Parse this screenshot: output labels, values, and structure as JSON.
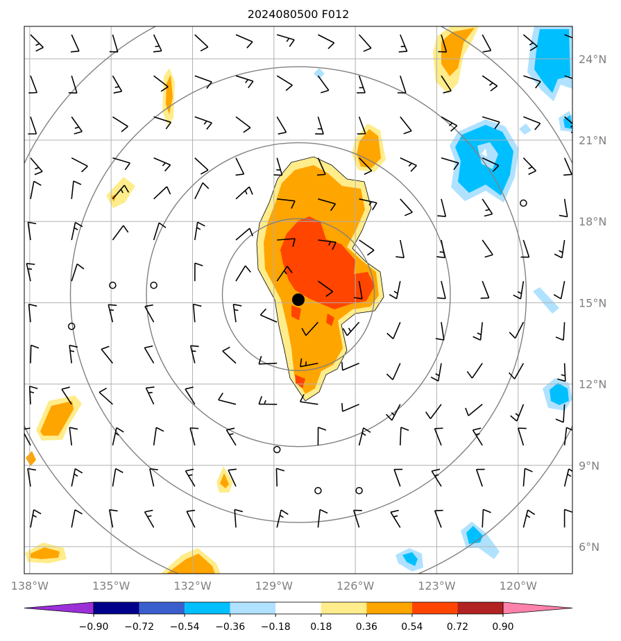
{
  "title": "2024080500 F012",
  "map": {
    "lon_range": [
      -138.2,
      -118.0
    ],
    "lat_range": [
      5.0,
      25.2
    ],
    "lon_ticks": [
      {
        "value": -138,
        "label": "138°W"
      },
      {
        "value": -135,
        "label": "135°W"
      },
      {
        "value": -132,
        "label": "132°W"
      },
      {
        "value": -129,
        "label": "129°W"
      },
      {
        "value": -126,
        "label": "126°W"
      },
      {
        "value": -123,
        "label": "123°W"
      },
      {
        "value": -120,
        "label": "120°W"
      }
    ],
    "lat_ticks": [
      {
        "value": 6,
        "label": "6°N"
      },
      {
        "value": 9,
        "label": "9°N"
      },
      {
        "value": 12,
        "label": "12°N"
      },
      {
        "value": 15,
        "label": "15°N"
      },
      {
        "value": 18,
        "label": "18°N"
      },
      {
        "value": 21,
        "label": "21°N"
      },
      {
        "value": 24,
        "label": "24°N"
      }
    ],
    "center": {
      "lon": -128.1,
      "lat": 15.3
    },
    "range_rings_deg": [
      2.8,
      5.6,
      8.4,
      11.2
    ]
  },
  "colorbar": {
    "tick_labels": [
      "−0.90",
      "−0.72",
      "−0.54",
      "−0.36",
      "−0.18",
      "0.18",
      "0.36",
      "0.54",
      "0.72",
      "0.90"
    ],
    "colors": [
      "#9b30d9",
      "#00008b",
      "#3a5fcd",
      "#00bfff",
      "#b0e2ff",
      "#ffffff",
      "#ffec8b",
      "#ffa500",
      "#ff4500",
      "#b22222",
      "#ff82ab"
    ]
  },
  "colors": {
    "light_yellow": "#ffec8b",
    "orange": "#ffa500",
    "red_orange": "#ff4500",
    "light_blue": "#b0e2ff",
    "deep_sky_blue": "#00bfff",
    "grid": "#b0b0b0",
    "ring": "#808080"
  }
}
